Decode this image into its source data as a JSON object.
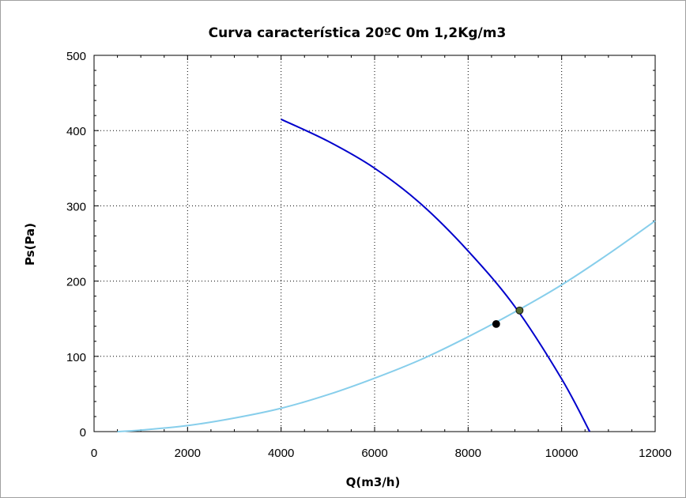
{
  "chart_data": {
    "type": "line",
    "title": "Curva característica 20ºC 0m 1,2Kg/m3",
    "xlabel": "Q(m3/h)",
    "ylabel": "Ps(Pa)",
    "xlim": [
      0,
      12000
    ],
    "ylim": [
      0,
      500
    ],
    "x_ticks": [
      0,
      2000,
      4000,
      6000,
      8000,
      10000,
      12000
    ],
    "y_ticks": [
      0,
      100,
      200,
      300,
      400,
      500
    ],
    "x_tick_labels": [
      "0",
      "2000",
      "4000",
      "6000",
      "8000",
      "10000",
      "12000"
    ],
    "y_tick_labels": [
      "0",
      "100",
      "200",
      "300",
      "400",
      "500"
    ],
    "grid": true,
    "grid_style": "dotted",
    "series": [
      {
        "role": "fan-curve",
        "color": "#0000cc",
        "points": [
          [
            4000,
            415
          ],
          [
            5000,
            386
          ],
          [
            6000,
            350
          ],
          [
            7000,
            302
          ],
          [
            8000,
            240
          ],
          [
            9000,
            166
          ],
          [
            10000,
            70
          ],
          [
            10600,
            0
          ]
        ]
      },
      {
        "role": "system-curve",
        "color": "#87ceeb",
        "points": [
          [
            500,
            0
          ],
          [
            1000,
            2
          ],
          [
            2000,
            8
          ],
          [
            3000,
            18
          ],
          [
            4000,
            31
          ],
          [
            5000,
            49
          ],
          [
            6000,
            71
          ],
          [
            7000,
            96
          ],
          [
            8000,
            126
          ],
          [
            9000,
            159
          ],
          [
            10000,
            195
          ],
          [
            11000,
            236
          ],
          [
            12000,
            280
          ]
        ]
      }
    ],
    "markers": [
      {
        "role": "design-point",
        "x": 8600,
        "y": 143,
        "color": "#000000"
      },
      {
        "role": "operating-point",
        "x": 9100,
        "y": 161,
        "color": "#556b2f"
      }
    ]
  }
}
